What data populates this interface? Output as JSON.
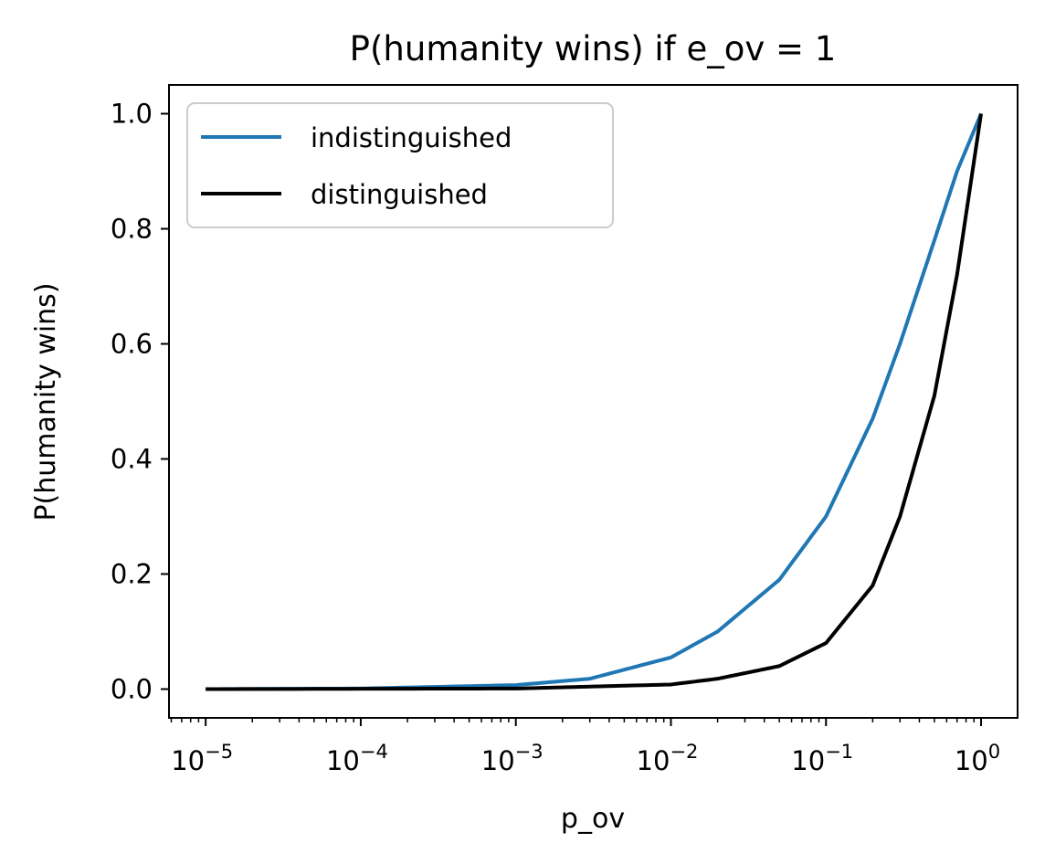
{
  "chart_data": {
    "type": "line",
    "title": "P(humanity wins) if e_ov = 1",
    "xlabel": "p_ov",
    "ylabel": "P(humanity wins)",
    "xscale": "log",
    "xlim": [
      5.8e-06,
      1.72
    ],
    "ylim": [
      -0.05,
      1.05
    ],
    "legend_position": "top-left",
    "x_ticks": [
      {
        "value": 1e-05,
        "base": "10",
        "exponent": "−5"
      },
      {
        "value": 0.0001,
        "base": "10",
        "exponent": "−4"
      },
      {
        "value": 0.001,
        "base": "10",
        "exponent": "−3"
      },
      {
        "value": 0.01,
        "base": "10",
        "exponent": "−2"
      },
      {
        "value": 0.1,
        "base": "10",
        "exponent": "−1"
      },
      {
        "value": 1,
        "base": "10",
        "exponent": "0"
      }
    ],
    "y_ticks": [
      {
        "value": 0.0,
        "label": "0.0"
      },
      {
        "value": 0.2,
        "label": "0.2"
      },
      {
        "value": 0.4,
        "label": "0.4"
      },
      {
        "value": 0.6,
        "label": "0.6"
      },
      {
        "value": 0.8,
        "label": "0.8"
      },
      {
        "value": 1.0,
        "label": "1.0"
      }
    ],
    "series": [
      {
        "name": "indistinguished",
        "color": "#1f77b4",
        "x": [
          1e-05,
          0.0001,
          0.001,
          0.003,
          0.01,
          0.02,
          0.05,
          0.1,
          0.2,
          0.3,
          0.5,
          0.7,
          1.0
        ],
        "y": [
          0.0,
          0.001,
          0.007,
          0.018,
          0.055,
          0.1,
          0.19,
          0.3,
          0.47,
          0.6,
          0.78,
          0.9,
          1.0
        ]
      },
      {
        "name": "distinguished",
        "color": "#000000",
        "x": [
          1e-05,
          0.001,
          0.01,
          0.02,
          0.05,
          0.1,
          0.2,
          0.3,
          0.5,
          0.7,
          1.0
        ],
        "y": [
          0.0,
          0.001,
          0.008,
          0.018,
          0.04,
          0.08,
          0.18,
          0.3,
          0.51,
          0.72,
          1.0
        ]
      }
    ]
  }
}
